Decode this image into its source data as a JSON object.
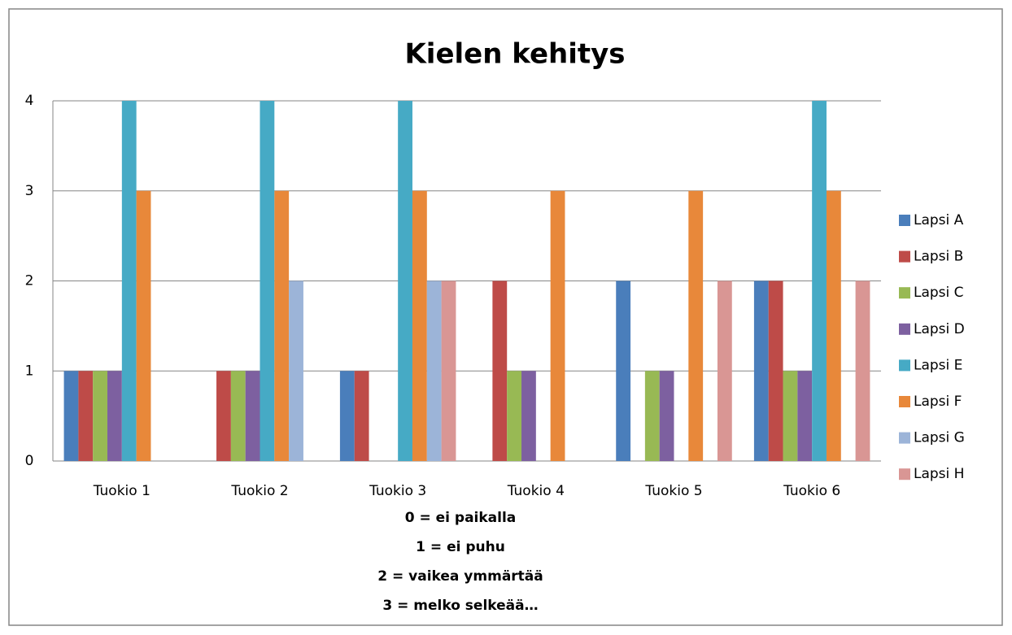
{
  "chart_data": {
    "type": "bar",
    "title": "Kielen kehitys",
    "categories": [
      "Tuokio 1",
      "Tuokio 2",
      "Tuokio 3",
      "Tuokio 4",
      "Tuokio 5",
      "Tuokio 6"
    ],
    "series": [
      {
        "name": "Lapsi A",
        "color": "#4a7ebb",
        "values": [
          1,
          0,
          1,
          0,
          2,
          2
        ]
      },
      {
        "name": "Lapsi B",
        "color": "#be4b48",
        "values": [
          1,
          1,
          1,
          2,
          0,
          2
        ]
      },
      {
        "name": "Lapsi C",
        "color": "#98b954",
        "values": [
          1,
          1,
          0,
          1,
          1,
          1
        ]
      },
      {
        "name": "Lapsi D",
        "color": "#7d60a0",
        "values": [
          1,
          1,
          0,
          1,
          1,
          1
        ]
      },
      {
        "name": "Lapsi E",
        "color": "#46aac5",
        "values": [
          4,
          4,
          4,
          0,
          0,
          4
        ]
      },
      {
        "name": "Lapsi F",
        "color": "#e8883a",
        "values": [
          3,
          3,
          3,
          3,
          3,
          3
        ]
      },
      {
        "name": "Lapsi G",
        "color": "#9cb4d8",
        "values": [
          0,
          2,
          2,
          0,
          0,
          0
        ]
      },
      {
        "name": "Lapsi H",
        "color": "#d99694",
        "values": [
          0,
          0,
          2,
          0,
          2,
          2
        ]
      }
    ],
    "xlabel": [
      "0 = ei paikalla",
      "1 = ei puhu",
      "2 = vaikea ymmärtää",
      "3 = melko selkeää…"
    ],
    "ylim": [
      0,
      4
    ],
    "yticks": [
      0,
      1,
      2,
      3,
      4
    ],
    "grid": true,
    "legend": "right"
  }
}
